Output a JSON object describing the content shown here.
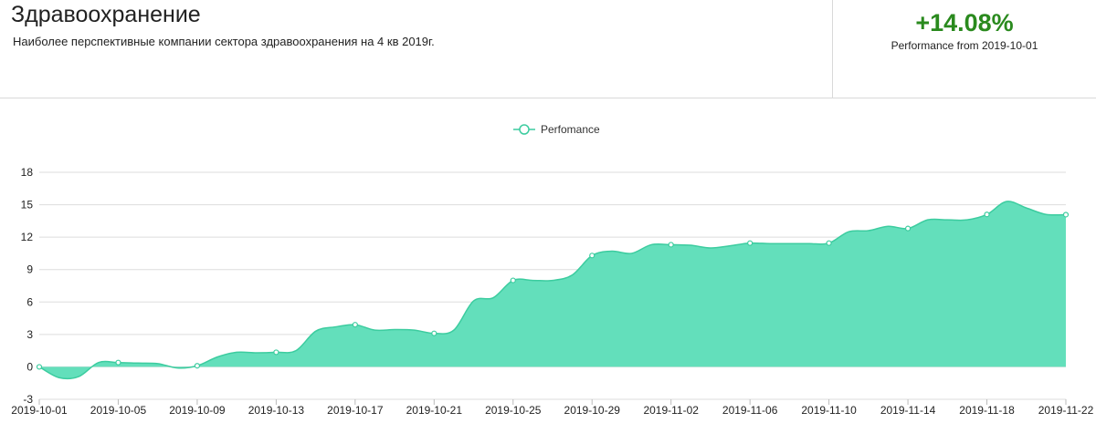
{
  "header": {
    "title": "Здравоохранение",
    "subtitle": "Наиболее перспективные компании сектора здравоохранения на 4 кв 2019г.",
    "performance_value": "+14.08%",
    "performance_label": "Performance from 2019-10-01"
  },
  "colors": {
    "fill": "#63dfbb",
    "stroke": "#3ccc9f",
    "performance": "#2a8a1e",
    "grid": "#dddddd"
  },
  "chart_data": {
    "type": "area",
    "legend": {
      "label": "Perfomance",
      "position": "top-center"
    },
    "grid": true,
    "ylim": [
      -3,
      18
    ],
    "yticks": [
      -3,
      0,
      3,
      6,
      9,
      12,
      15,
      18
    ],
    "xlim": [
      "2019-10-01",
      "2019-11-22"
    ],
    "xticks": [
      "2019-10-01",
      "2019-10-05",
      "2019-10-09",
      "2019-10-13",
      "2019-10-17",
      "2019-10-21",
      "2019-10-25",
      "2019-10-29",
      "2019-11-02",
      "2019-11-06",
      "2019-11-10",
      "2019-11-14",
      "2019-11-18",
      "2019-11-22"
    ],
    "series": [
      {
        "name": "Perfomance",
        "points": [
          {
            "x": "2019-10-01",
            "y": 0
          },
          {
            "x": "2019-10-02",
            "y": -1.0
          },
          {
            "x": "2019-10-03",
            "y": -0.9
          },
          {
            "x": "2019-10-04",
            "y": 0.4
          },
          {
            "x": "2019-10-05",
            "y": 0.4
          },
          {
            "x": "2019-10-06",
            "y": 0.35
          },
          {
            "x": "2019-10-07",
            "y": 0.3
          },
          {
            "x": "2019-10-08",
            "y": -0.1
          },
          {
            "x": "2019-10-09",
            "y": 0.1
          },
          {
            "x": "2019-10-10",
            "y": 0.9
          },
          {
            "x": "2019-10-11",
            "y": 1.35
          },
          {
            "x": "2019-10-12",
            "y": 1.3
          },
          {
            "x": "2019-10-13",
            "y": 1.35
          },
          {
            "x": "2019-10-14",
            "y": 1.5
          },
          {
            "x": "2019-10-15",
            "y": 3.3
          },
          {
            "x": "2019-10-16",
            "y": 3.7
          },
          {
            "x": "2019-10-17",
            "y": 3.9
          },
          {
            "x": "2019-10-18",
            "y": 3.4
          },
          {
            "x": "2019-10-19",
            "y": 3.45
          },
          {
            "x": "2019-10-20",
            "y": 3.4
          },
          {
            "x": "2019-10-21",
            "y": 3.1
          },
          {
            "x": "2019-10-22",
            "y": 3.4
          },
          {
            "x": "2019-10-23",
            "y": 6.1
          },
          {
            "x": "2019-10-24",
            "y": 6.4
          },
          {
            "x": "2019-10-25",
            "y": 8.0
          },
          {
            "x": "2019-10-26",
            "y": 8.0
          },
          {
            "x": "2019-10-27",
            "y": 8.0
          },
          {
            "x": "2019-10-28",
            "y": 8.5
          },
          {
            "x": "2019-10-29",
            "y": 10.3
          },
          {
            "x": "2019-10-30",
            "y": 10.7
          },
          {
            "x": "2019-10-31",
            "y": 10.5
          },
          {
            "x": "2019-11-01",
            "y": 11.3
          },
          {
            "x": "2019-11-02",
            "y": 11.3
          },
          {
            "x": "2019-11-03",
            "y": 11.25
          },
          {
            "x": "2019-11-04",
            "y": 11.0
          },
          {
            "x": "2019-11-05",
            "y": 11.2
          },
          {
            "x": "2019-11-06",
            "y": 11.45
          },
          {
            "x": "2019-11-07",
            "y": 11.4
          },
          {
            "x": "2019-11-08",
            "y": 11.4
          },
          {
            "x": "2019-11-09",
            "y": 11.4
          },
          {
            "x": "2019-11-10",
            "y": 11.45
          },
          {
            "x": "2019-11-11",
            "y": 12.5
          },
          {
            "x": "2019-11-12",
            "y": 12.6
          },
          {
            "x": "2019-11-13",
            "y": 13.0
          },
          {
            "x": "2019-11-14",
            "y": 12.8
          },
          {
            "x": "2019-11-15",
            "y": 13.6
          },
          {
            "x": "2019-11-16",
            "y": 13.6
          },
          {
            "x": "2019-11-17",
            "y": 13.6
          },
          {
            "x": "2019-11-18",
            "y": 14.1
          },
          {
            "x": "2019-11-19",
            "y": 15.3
          },
          {
            "x": "2019-11-20",
            "y": 14.7
          },
          {
            "x": "2019-11-21",
            "y": 14.1
          },
          {
            "x": "2019-11-22",
            "y": 14.08
          }
        ],
        "markers": [
          "2019-10-01",
          "2019-10-05",
          "2019-10-09",
          "2019-10-13",
          "2019-10-17",
          "2019-10-21",
          "2019-10-25",
          "2019-10-29",
          "2019-11-02",
          "2019-11-06",
          "2019-11-10",
          "2019-11-14",
          "2019-11-18",
          "2019-11-22"
        ]
      }
    ]
  }
}
